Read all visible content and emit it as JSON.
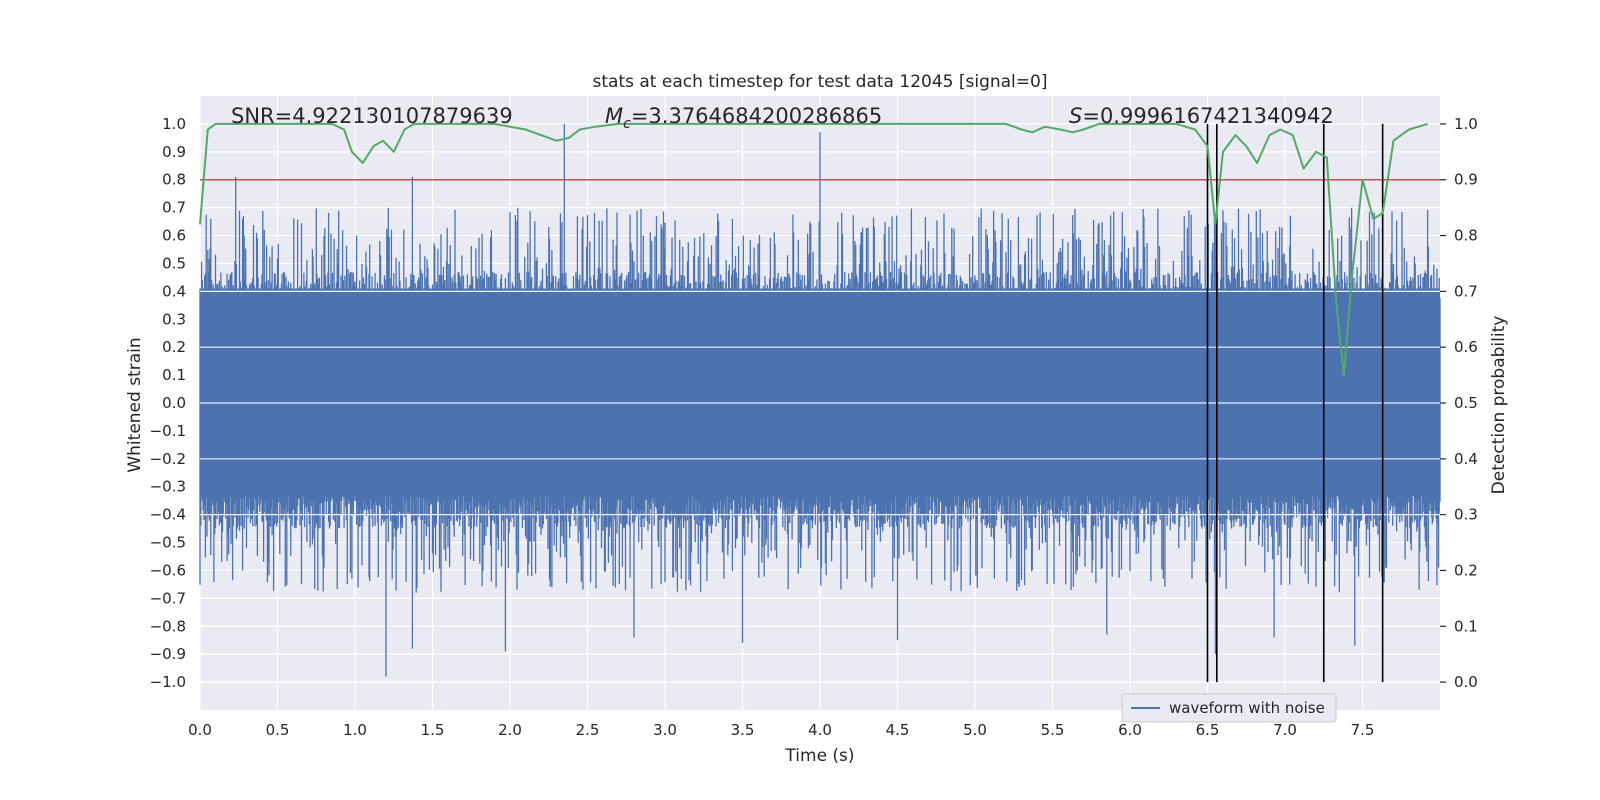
{
  "chart_data": {
    "type": "line",
    "title": "stats at each timestep for test data 12045 [signal=0]",
    "xlabel": "Time (s)",
    "ylabel": "Whitened strain",
    "y2label": "Detection probability",
    "xlim": [
      0.0,
      8.0
    ],
    "ylim": [
      -1.1,
      1.1
    ],
    "y2lim": [
      -0.05,
      1.05
    ],
    "xticks": [
      0.0,
      0.5,
      1.0,
      1.5,
      2.0,
      2.5,
      3.0,
      3.5,
      4.0,
      4.5,
      5.0,
      5.5,
      6.0,
      6.5,
      7.0,
      7.5
    ],
    "xtick_labels": [
      "0.0",
      "0.5",
      "1.0",
      "1.5",
      "2.0",
      "2.5",
      "3.0",
      "3.5",
      "4.0",
      "4.5",
      "5.0",
      "5.5",
      "6.0",
      "6.5",
      "7.0",
      "7.5"
    ],
    "yticks": [
      1.0,
      0.9,
      0.8,
      0.7,
      0.6,
      0.5,
      0.4,
      0.3,
      0.2,
      0.1,
      0.0,
      -0.1,
      -0.2,
      -0.3,
      -0.4,
      -0.5,
      -0.6,
      -0.7,
      -0.8,
      -0.9,
      -1.0
    ],
    "ytick_labels": [
      "1.0",
      "0.9",
      "0.8",
      "0.7",
      "0.6",
      "0.5",
      "0.4",
      "0.3",
      "0.2",
      "0.1",
      "0.0",
      "−0.1",
      "−0.2",
      "−0.3",
      "−0.4",
      "−0.5",
      "−0.6",
      "−0.7",
      "−0.8",
      "−0.9",
      "−1.0"
    ],
    "y2ticks": [
      1.0,
      0.9,
      0.8,
      0.7,
      0.6,
      0.5,
      0.4,
      0.3,
      0.2,
      0.1,
      0.0
    ],
    "y2tick_labels": [
      "1.0",
      "0.9",
      "0.8",
      "0.7",
      "0.6",
      "0.5",
      "0.4",
      "0.3",
      "0.2",
      "0.1",
      "0.0"
    ],
    "grid": true,
    "legend_position": "lower-right",
    "annotations": {
      "snr": "SNR=4.922130107879639",
      "mc_symbol": "M",
      "mc_sub": "c",
      "mc_value": "=3.3764684200286865",
      "s_symbol": "S",
      "s_value": "=0.9996167421340942"
    },
    "threshold": {
      "value": 0.9,
      "axis": "y2",
      "color": "#c44e52"
    },
    "detection_markers_x": [
      6.5,
      6.56,
      7.25,
      7.63
    ],
    "series": [
      {
        "name": "waveform with noise",
        "axis": "y",
        "color": "#4c72b0",
        "style": "dense noise envelope",
        "core_band": [
          -0.19,
          0.41
        ],
        "peaks": [
          {
            "x": 0.23,
            "y": 0.81
          },
          {
            "x": 1.37,
            "y": 0.81
          },
          {
            "x": 2.35,
            "y": 1.0
          },
          {
            "x": 4.0,
            "y": 0.97
          },
          {
            "x": 6.6,
            "y": 0.69
          }
        ],
        "troughs": [
          {
            "x": 1.2,
            "y": -0.98
          },
          {
            "x": 1.37,
            "y": -0.88
          },
          {
            "x": 1.97,
            "y": -0.89
          },
          {
            "x": 2.8,
            "y": -0.84
          },
          {
            "x": 3.5,
            "y": -0.86
          },
          {
            "x": 4.5,
            "y": -0.85
          },
          {
            "x": 5.85,
            "y": -0.83
          },
          {
            "x": 6.55,
            "y": -0.9
          },
          {
            "x": 6.93,
            "y": -0.84
          },
          {
            "x": 7.45,
            "y": -0.87
          }
        ]
      },
      {
        "name": "",
        "axis": "y2",
        "color": "#55a868",
        "x": [
          0.0,
          0.05,
          0.1,
          0.15,
          0.3,
          0.5,
          0.7,
          0.85,
          0.93,
          0.98,
          1.05,
          1.12,
          1.18,
          1.25,
          1.32,
          1.38,
          1.5,
          1.7,
          1.9,
          2.1,
          2.2,
          2.3,
          2.38,
          2.45,
          2.55,
          2.7,
          2.9,
          3.2,
          3.6,
          4.0,
          4.5,
          5.0,
          5.2,
          5.3,
          5.37,
          5.45,
          5.55,
          5.63,
          5.7,
          5.8,
          6.0,
          6.2,
          6.3,
          6.42,
          6.5,
          6.55,
          6.6,
          6.68,
          6.75,
          6.82,
          6.9,
          6.97,
          7.05,
          7.12,
          7.2,
          7.27,
          7.33,
          7.38,
          7.43,
          7.5,
          7.57,
          7.63,
          7.7,
          7.8,
          7.92
        ],
        "values": [
          0.82,
          0.99,
          1.0,
          1.0,
          1.0,
          1.0,
          1.0,
          1.0,
          0.99,
          0.95,
          0.93,
          0.96,
          0.97,
          0.95,
          0.99,
          1.0,
          1.0,
          1.0,
          1.0,
          0.99,
          0.98,
          0.97,
          0.975,
          0.99,
          0.995,
          1.0,
          1.0,
          1.0,
          1.0,
          1.0,
          1.0,
          1.0,
          1.0,
          0.99,
          0.985,
          0.995,
          0.99,
          0.985,
          0.99,
          1.0,
          1.0,
          1.0,
          1.0,
          0.99,
          0.96,
          0.82,
          0.95,
          0.98,
          0.96,
          0.93,
          0.98,
          0.99,
          0.98,
          0.92,
          0.95,
          0.94,
          0.68,
          0.55,
          0.72,
          0.9,
          0.83,
          0.84,
          0.97,
          0.99,
          1.0
        ]
      }
    ]
  }
}
